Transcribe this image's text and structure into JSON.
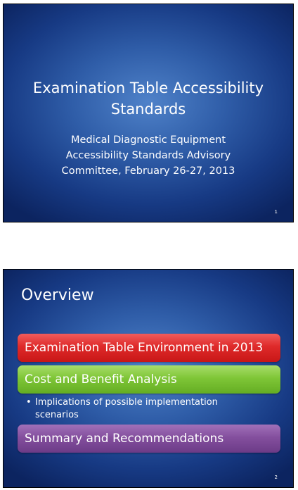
{
  "slides": [
    {
      "number": "1",
      "title": "Examination Table Accessibility Standards",
      "subtitle_lines": [
        "Medical Diagnostic Equipment",
        "Accessibility Standards Advisory",
        "Committee, February 26-27, 2013"
      ]
    },
    {
      "number": "2",
      "title": "Overview",
      "items": [
        {
          "label": "Examination Table Environment in 2013",
          "color": "#d62a2a"
        },
        {
          "label": "Cost and Benefit Analysis",
          "color": "#7fc637"
        },
        {
          "label": "Summary and Recommendations",
          "color": "#844f9e"
        }
      ],
      "bullet": {
        "symbol": "•",
        "text": "Implications of possible implementation scenarios"
      }
    }
  ],
  "colors": {
    "slide_background": "#2f5da8",
    "text": "#ffffff"
  }
}
